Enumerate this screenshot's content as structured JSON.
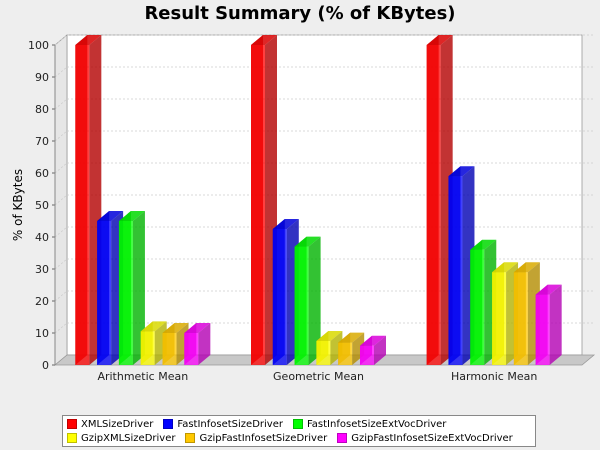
{
  "chart_data": {
    "type": "bar",
    "title": "Result Summary (% of KBytes)",
    "xlabel": "",
    "ylabel": "% of KBytes",
    "ylim": [
      0,
      100
    ],
    "yticks": [
      "0",
      "10",
      "20",
      "30",
      "40",
      "50",
      "60",
      "70",
      "80",
      "90",
      "100"
    ],
    "grid": true,
    "legend_position": "bottom",
    "style": "3d",
    "categories": [
      "Arithmetic Mean",
      "Geometric Mean",
      "Harmonic Mean"
    ],
    "series": [
      {
        "name": "XMLSizeDriver",
        "color": "#ff0000",
        "values": [
          100,
          100,
          100
        ]
      },
      {
        "name": "FastInfosetSizeDriver",
        "color": "#0000ff",
        "values": [
          45,
          42.5,
          59
        ]
      },
      {
        "name": "FastInfosetSizeExtVocDriver",
        "color": "#00ff00",
        "values": [
          45,
          37,
          36
        ]
      },
      {
        "name": "GzipXMLSizeDriver",
        "color": "#ffff00",
        "values": [
          10.5,
          7.5,
          29
        ]
      },
      {
        "name": "GzipFastInfosetSizeDriver",
        "color": "#ffc800",
        "values": [
          10,
          7,
          29
        ]
      },
      {
        "name": "GzipFastInfosetSizeExtVocDriver",
        "color": "#ff00ff",
        "values": [
          10,
          6,
          22
        ]
      }
    ]
  }
}
